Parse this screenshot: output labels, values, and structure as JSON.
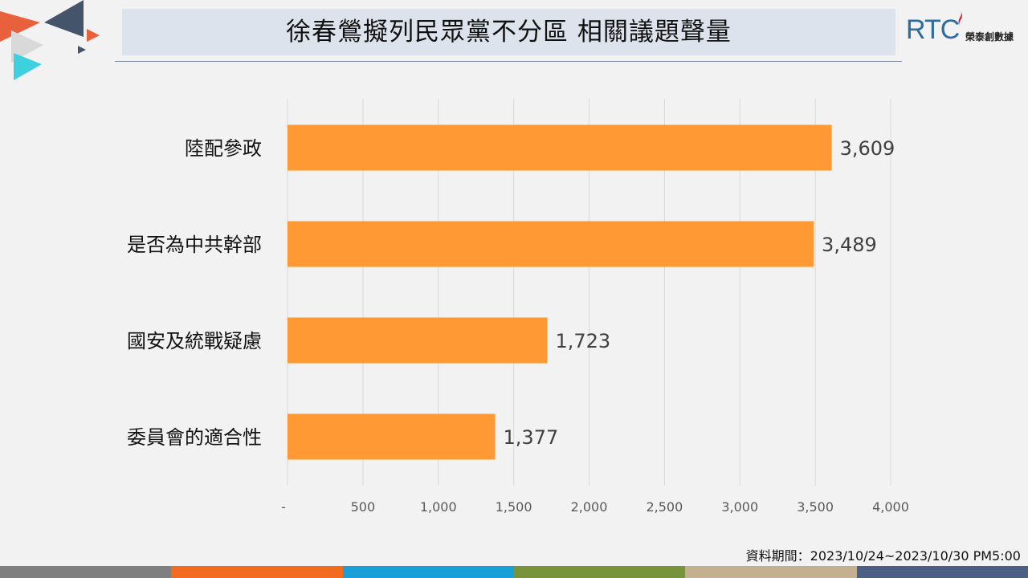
{
  "header": {
    "title": "徐春鶯擬列民眾黨不分區 相關議題聲量"
  },
  "logo": {
    "mark": "RTC",
    "subtitle": "榮泰創數據"
  },
  "footnote": "資料期間：2023/10/24~2023/10/30 PM5:00",
  "colors": {
    "bar": "#ff9933",
    "grid": "#d9d9d9",
    "footer": [
      "#7f7f7f",
      "#f26b21",
      "#1aa0d8",
      "#77933c",
      "#c4b090",
      "#4a6085"
    ]
  },
  "chart_data": {
    "type": "bar",
    "orientation": "horizontal",
    "categories": [
      "陸配參政",
      "是否為中共幹部",
      "國安及統戰疑慮",
      "委員會的適合性"
    ],
    "values": [
      3609,
      3489,
      1723,
      1377
    ],
    "value_labels": [
      "3,609",
      "3,489",
      "1,723",
      "1,377"
    ],
    "xlim": [
      0,
      4000
    ],
    "xticks": [
      0,
      500,
      1000,
      1500,
      2000,
      2500,
      3000,
      3500,
      4000
    ],
    "xtick_labels": [
      "-",
      "500",
      "1,000",
      "1,500",
      "2,000",
      "2,500",
      "3,000",
      "3,500",
      "4,000"
    ],
    "grid": true,
    "legend": "none"
  }
}
